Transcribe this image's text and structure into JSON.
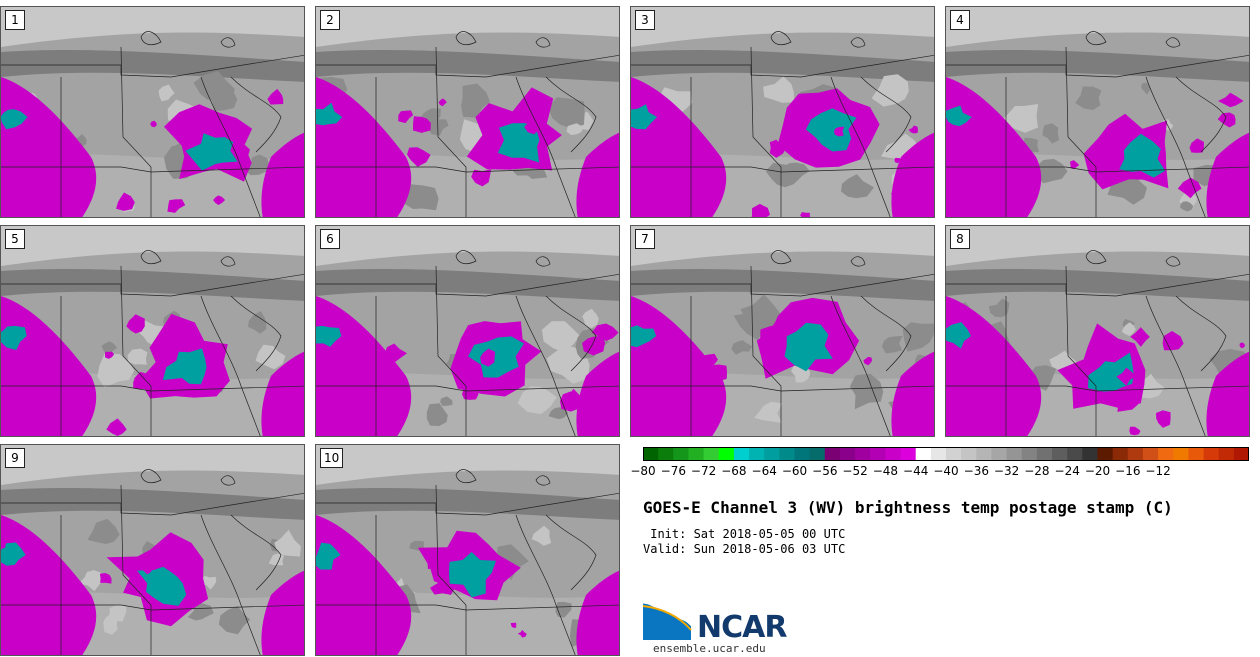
{
  "panels": [
    {
      "label": "1"
    },
    {
      "label": "2"
    },
    {
      "label": "3"
    },
    {
      "label": "4"
    },
    {
      "label": "5"
    },
    {
      "label": "6"
    },
    {
      "label": "7"
    },
    {
      "label": "8"
    },
    {
      "label": "9"
    },
    {
      "label": "10"
    }
  ],
  "colorbar": {
    "colors": [
      "#006400",
      "#0a7d0a",
      "#14961a",
      "#22b022",
      "#33cc33",
      "#00ff00",
      "#00cfcf",
      "#00b3b3",
      "#009e9e",
      "#008a8a",
      "#00767a",
      "#056b6b",
      "#7a0074",
      "#8a008a",
      "#a100a1",
      "#b400b4",
      "#c800c8",
      "#dc00dc",
      "#ffffff",
      "#e6e6e6",
      "#d2d2d2",
      "#c4c4c4",
      "#b5b5b5",
      "#a6a6a6",
      "#959595",
      "#838383",
      "#717171",
      "#5e5e5e",
      "#4a4a4a",
      "#333333",
      "#5c1a00",
      "#8a2a06",
      "#b03a10",
      "#d15018",
      "#ef6a10",
      "#f07a00",
      "#e85a0a",
      "#d63a08",
      "#c22a06",
      "#b01804"
    ],
    "tick_labels": [
      "−80",
      "−76",
      "−72",
      "−68",
      "−64",
      "−60",
      "−56",
      "−52",
      "−48",
      "−44",
      "−40",
      "−36",
      "−32",
      "−28",
      "−24",
      "−20",
      "−16",
      "−12"
    ]
  },
  "title": "GOES-E Channel 3 (WV) brightness temp postage stamp (C)",
  "init": " Init: Sat 2018-05-05 00 UTC",
  "valid": "Valid: Sun 2018-05-06 03 UTC",
  "logo_text": "NCAR",
  "url": "ensemble.ucar.edu"
}
